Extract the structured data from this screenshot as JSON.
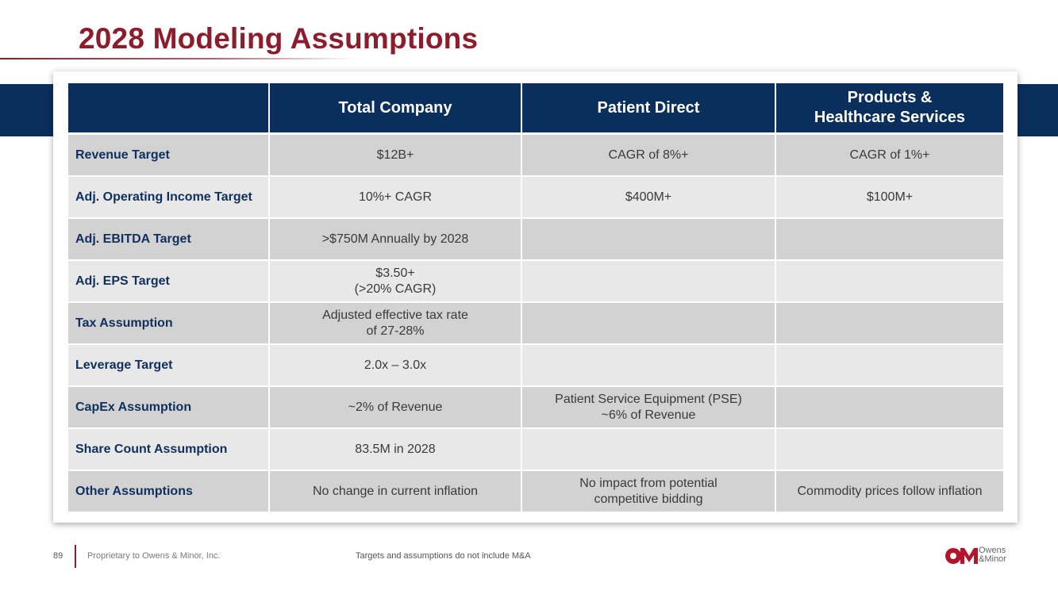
{
  "title": "2028 Modeling Assumptions",
  "table": {
    "headers": [
      "",
      "Total Company",
      "Patient Direct",
      "Products &\nHealthcare Services"
    ],
    "rows": [
      {
        "label": "Revenue Target",
        "cells": [
          "$12B+",
          "CAGR of 8%+",
          "CAGR of 1%+"
        ]
      },
      {
        "label": "Adj. Operating Income Target",
        "cells": [
          "10%+ CAGR",
          "$400M+",
          "$100M+"
        ]
      },
      {
        "label": "Adj. EBITDA Target",
        "cells": [
          ">$750M Annually by 2028",
          "",
          ""
        ]
      },
      {
        "label": "Adj. EPS Target",
        "cells": [
          "$3.50+\n(>20% CAGR)",
          "",
          ""
        ]
      },
      {
        "label": "Tax Assumption",
        "cells": [
          "Adjusted effective tax rate\nof 27-28%",
          "",
          ""
        ]
      },
      {
        "label": "Leverage Target",
        "cells": [
          "2.0x – 3.0x",
          "",
          ""
        ]
      },
      {
        "label": "CapEx Assumption",
        "cells": [
          "~2% of Revenue",
          "Patient Service Equipment (PSE)\n~6% of Revenue",
          ""
        ]
      },
      {
        "label": "Share Count Assumption",
        "cells": [
          "83.5M in 2028",
          "",
          ""
        ]
      },
      {
        "label": "Other Assumptions",
        "cells": [
          "No change in current inflation",
          "No impact from potential\ncompetitive bidding",
          "Commodity prices follow inflation"
        ]
      }
    ]
  },
  "footer": {
    "page_number": "89",
    "proprietary": "Proprietary to Owens & Minor, Inc.",
    "note": "Targets and assumptions do not include M&A"
  },
  "logo": {
    "mark": "OM",
    "line1": "Owens",
    "line2": "&Minor"
  },
  "colors": {
    "title": "#8b1d2c",
    "navy": "#0a2f5c",
    "row_dark": "#d2d2d2",
    "row_light": "#e8e8e8"
  }
}
